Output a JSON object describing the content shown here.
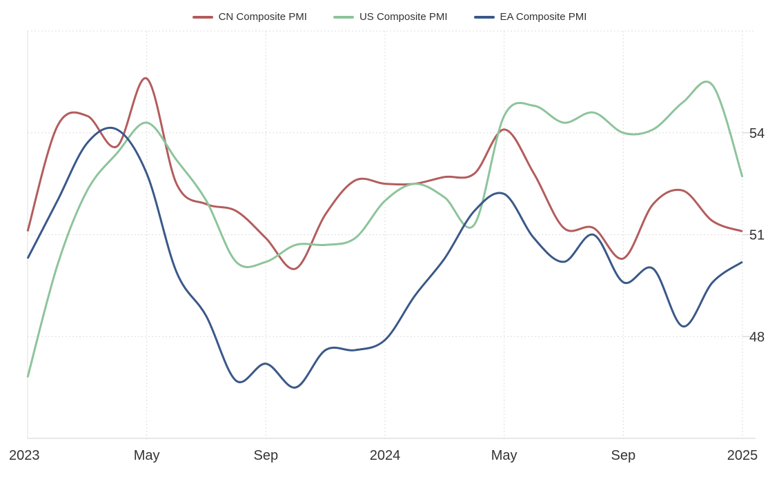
{
  "chart_data": {
    "type": "line",
    "title": "",
    "xlabel": "",
    "ylabel": "",
    "x": [
      "2023-01",
      "2023-02",
      "2023-03",
      "2023-04",
      "2023-05",
      "2023-06",
      "2023-07",
      "2023-08",
      "2023-09",
      "2023-10",
      "2023-11",
      "2023-12",
      "2024-01",
      "2024-02",
      "2024-03",
      "2024-04",
      "2024-05",
      "2024-06",
      "2024-07",
      "2024-08",
      "2024-09",
      "2024-10",
      "2024-11",
      "2024-12",
      "2025-01"
    ],
    "x_ticks": [
      {
        "label": "2023",
        "index": 0
      },
      {
        "label": "May",
        "index": 4
      },
      {
        "label": "Sep",
        "index": 8
      },
      {
        "label": "2024",
        "index": 12
      },
      {
        "label": "May",
        "index": 16
      },
      {
        "label": "Sep",
        "index": 20
      },
      {
        "label": "2025",
        "index": 24
      }
    ],
    "y_ticks": [
      48,
      51,
      54
    ],
    "ylim": [
      45,
      57
    ],
    "y_axis_side": "right",
    "grid": true,
    "legend_position": "top-center",
    "series": [
      {
        "name": "CN Composite PMI",
        "color": "#b35c5c",
        "values": [
          51.1,
          54.2,
          54.5,
          53.6,
          55.6,
          52.5,
          51.9,
          51.7,
          50.9,
          50.0,
          51.6,
          52.6,
          52.5,
          52.5,
          52.7,
          52.8,
          54.1,
          52.8,
          51.2,
          51.2,
          50.3,
          51.9,
          52.3,
          51.4,
          51.1
        ]
      },
      {
        "name": "US Composite PMI",
        "color": "#8dc49b",
        "values": [
          46.8,
          50.1,
          52.3,
          53.4,
          54.3,
          53.2,
          52.0,
          50.2,
          50.2,
          50.7,
          50.7,
          50.9,
          52.0,
          52.5,
          52.1,
          51.3,
          54.5,
          54.8,
          54.3,
          54.6,
          54.0,
          54.1,
          54.9,
          55.4,
          52.7
        ]
      },
      {
        "name": "EA Composite PMI",
        "color": "#3a5888",
        "values": [
          50.3,
          52.0,
          53.7,
          54.1,
          52.8,
          49.9,
          48.6,
          46.7,
          47.2,
          46.5,
          47.6,
          47.6,
          47.9,
          49.2,
          50.3,
          51.7,
          52.2,
          50.9,
          50.2,
          51.0,
          49.6,
          50.0,
          48.3,
          49.6,
          50.2
        ]
      }
    ]
  }
}
